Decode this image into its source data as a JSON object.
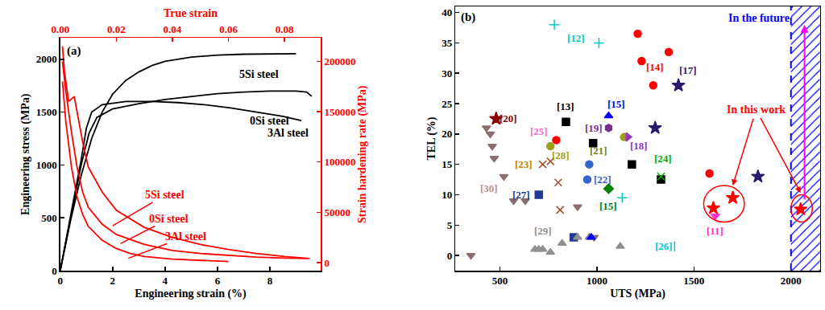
{
  "chart_data": [
    {
      "type": "line",
      "panel_label": "(a)",
      "x_label": "Engineering strain (%)",
      "y_label": "Engineering stress (MPa)",
      "x2_label": "True strain",
      "y2_label": "Strain hardening rate (MPa)",
      "xlim": [
        0,
        9.95
      ],
      "xticks": [
        0,
        2,
        4,
        6,
        8
      ],
      "ylim": [
        0,
        2200
      ],
      "yticks": [
        0,
        500,
        1000,
        1500,
        2000
      ],
      "x2lim": [
        0,
        0.093
      ],
      "x2ticks": [
        {
          "value": 0,
          "label": "0.00"
        },
        0.02,
        0.04,
        0.06,
        0.08
      ],
      "y2lim": [
        -8000,
        223000
      ],
      "y2ticks": [
        0,
        50000,
        100000,
        150000,
        200000
      ],
      "series": [
        {
          "name": "5Si steel",
          "color": "#000000",
          "x": [
            0,
            0.4,
            0.8,
            1.2,
            1.6,
            2,
            2.5,
            3,
            3.5,
            4,
            5,
            6,
            7,
            8,
            9
          ],
          "values": [
            0,
            480,
            900,
            1250,
            1500,
            1670,
            1800,
            1880,
            1940,
            1980,
            2020,
            2040,
            2048,
            2050,
            2052
          ]
        },
        {
          "name": "0Si steel",
          "color": "#000000",
          "x": [
            0,
            0.4,
            0.8,
            1.1,
            1.4,
            2,
            3,
            4,
            5,
            6,
            7,
            8,
            9,
            9.4,
            9.6
          ],
          "values": [
            0,
            500,
            1000,
            1300,
            1450,
            1530,
            1580,
            1620,
            1650,
            1675,
            1690,
            1700,
            1700,
            1690,
            1650
          ]
        },
        {
          "name": "3Al steel",
          "color": "#000000",
          "x": [
            0,
            0.4,
            0.8,
            1.0,
            1.2,
            1.6,
            2.5,
            3.5,
            4.5,
            5.5,
            6.5,
            7.5,
            8.5,
            9.2
          ],
          "values": [
            0,
            520,
            1050,
            1350,
            1500,
            1570,
            1600,
            1600,
            1590,
            1570,
            1540,
            1500,
            1460,
            1420
          ]
        },
        {
          "name": "5Si steel",
          "color": "#ff0000",
          "axis": "y2",
          "x": [
            0.0008,
            0.0015,
            0.003,
            0.005,
            0.006,
            0.008,
            0.01,
            0.015,
            0.02,
            0.03,
            0.04,
            0.05,
            0.06,
            0.07,
            0.08,
            0.089
          ],
          "values": [
            215000,
            190000,
            160000,
            165000,
            150000,
            120000,
            95000,
            70000,
            52000,
            35000,
            25000,
            18000,
            13000,
            9000,
            6000,
            4000
          ]
        },
        {
          "name": "0Si steel",
          "color": "#ff0000",
          "axis": "y2",
          "x": [
            0.0008,
            0.002,
            0.004,
            0.006,
            0.008,
            0.01,
            0.015,
            0.02,
            0.03,
            0.04,
            0.05,
            0.06,
            0.07,
            0.08,
            0.088
          ],
          "values": [
            200000,
            170000,
            130000,
            95000,
            70000,
            55000,
            38000,
            28000,
            18000,
            12000,
            9000,
            7000,
            5500,
            4500,
            4000
          ]
        },
        {
          "name": "3Al steel",
          "color": "#ff0000",
          "axis": "y2",
          "x": [
            0.0008,
            0.002,
            0.004,
            0.006,
            0.008,
            0.01,
            0.015,
            0.02,
            0.025,
            0.03,
            0.04,
            0.05,
            0.06
          ],
          "values": [
            180000,
            140000,
            95000,
            65000,
            48000,
            36000,
            22000,
            14000,
            9000,
            6000,
            3500,
            2000,
            1000
          ]
        }
      ],
      "annotations": [
        {
          "text": "5Si steel",
          "x": 7.6,
          "y": 1860,
          "color": "#000000"
        },
        {
          "text": "0Si steel",
          "x": 8.0,
          "y": 1420,
          "color": "#000000"
        },
        {
          "text": "3Al steel",
          "x": 8.7,
          "y": 1300,
          "color": "#000000"
        },
        {
          "text": "5Si steel",
          "x": 4.0,
          "y": 715,
          "color": "#ff0000",
          "arrow_x": 2.0,
          "arrow_y": 425
        },
        {
          "text": "0Si steel",
          "x": 4.15,
          "y": 490,
          "color": "#ff0000",
          "arrow_x": 2.3,
          "arrow_y": 255
        },
        {
          "text": "3Al steel",
          "x": 4.8,
          "y": 323,
          "color": "#ff0000",
          "arrow_x": 2.6,
          "arrow_y": 117
        }
      ]
    },
    {
      "type": "scatter",
      "panel_label": "(b)",
      "x_label": "UTS (MPa)",
      "y_label": "TEL (%)",
      "xlim": [
        270,
        2150
      ],
      "xticks": [
        500,
        1000,
        1500,
        2000
      ],
      "ylim": [
        -2.5,
        41
      ],
      "yticks": [
        0,
        5,
        10,
        15,
        20,
        25,
        30,
        35,
        40
      ],
      "series": [
        {
          "color": "#8b6f6f",
          "marker": "triangle-down",
          "x": [
            350,
            430,
            450,
            460,
            470,
            520,
            570,
            630,
            900,
            985
          ],
          "values": [
            0,
            21,
            20,
            18,
            16,
            13,
            9,
            9,
            8,
            3
          ]
        },
        {
          "color": "#8b0000",
          "marker": "star",
          "x": [
            480
          ],
          "values": [
            22.5
          ]
        },
        {
          "color": "#ff0000",
          "marker": "circle",
          "x": [
            790,
            1210,
            1230,
            1290,
            1370,
            1580
          ],
          "values": [
            19,
            36.5,
            32,
            28,
            33.5,
            13.5
          ]
        },
        {
          "color": "#a0a020",
          "marker": "circle",
          "x": [
            760,
            1140
          ],
          "values": [
            18,
            19.5
          ]
        },
        {
          "color": "#000000",
          "marker": "square",
          "x": [
            840,
            980,
            1180,
            1330
          ],
          "values": [
            22,
            18.5,
            15,
            12.5
          ]
        },
        {
          "color": "#a0522d",
          "marker": "x-thin-open",
          "x": [
            720,
            760,
            800,
            810
          ],
          "values": [
            15,
            15.5,
            12,
            7.5
          ]
        },
        {
          "color": "#1f3a93",
          "marker": "square",
          "x": [
            700,
            880
          ],
          "values": [
            10,
            3
          ]
        },
        {
          "color": "#3366cc",
          "marker": "circle",
          "x": [
            950,
            960
          ],
          "values": [
            12.5,
            15
          ]
        },
        {
          "color": "#909090",
          "marker": "triangle-up",
          "x": [
            680,
            700,
            720,
            760,
            820,
            900,
            960,
            1120
          ],
          "values": [
            1,
            1,
            1,
            0.5,
            2,
            3,
            3,
            1.5
          ]
        },
        {
          "color": "#00cccc",
          "marker": "cross-thin-open",
          "x": [
            780,
            1010,
            1130
          ],
          "values": [
            38,
            35,
            9.5
          ]
        },
        {
          "color": "#00cccc",
          "marker": "line-ns-open",
          "x": [
            1400
          ],
          "values": [
            1.5
          ]
        },
        {
          "color": "#2b1a6b",
          "marker": "star",
          "x": [
            1420,
            1300,
            1830
          ],
          "values": [
            28,
            21,
            13
          ]
        },
        {
          "color": "#0000ff",
          "marker": "triangle-up",
          "x": [
            1060,
            970
          ],
          "values": [
            23,
            3
          ]
        },
        {
          "color": "#008000",
          "marker": "diamond",
          "x": [
            1060
          ],
          "values": [
            11
          ]
        },
        {
          "color": "#7b2d8e",
          "marker": "hexagon",
          "x": [
            1060
          ],
          "values": [
            21
          ]
        },
        {
          "color": "#9932cc",
          "marker": "triangle-right",
          "x": [
            1160
          ],
          "values": [
            19.5
          ]
        },
        {
          "color": "#00aa00",
          "marker": "x-thin-open",
          "x": [
            1330
          ],
          "values": [
            13
          ]
        },
        {
          "color": "#ff33cc",
          "marker": "triangle-down",
          "x": [
            1610
          ],
          "values": [
            6.5
          ]
        },
        {
          "color": "#ff0000",
          "marker": "star",
          "x": [
            1600,
            1700,
            2050
          ],
          "values": [
            7.8,
            9.5,
            7.6
          ]
        }
      ],
      "annotations": [
        {
          "text": "[12]",
          "x": 890,
          "y": 35.8,
          "color": "#00cccc"
        },
        {
          "text": "[14]",
          "x": 1300,
          "y": 31,
          "color": "#ff0000"
        },
        {
          "text": "[17]",
          "x": 1470,
          "y": 30.5,
          "color": "#2b1a6b"
        },
        {
          "text": "[13]",
          "x": 840,
          "y": 24.5,
          "color": "#000000"
        },
        {
          "text": "[15]",
          "x": 1100,
          "y": 25,
          "color": "#0000ff"
        },
        {
          "text": "[20]",
          "x": 545,
          "y": 22.5,
          "color": "#8b0000"
        },
        {
          "text": "[25]",
          "x": 700,
          "y": 20.5,
          "color": "#ff66cc"
        },
        {
          "text": "[19]",
          "x": 985,
          "y": 21,
          "color": "#7b2d8e"
        },
        {
          "text": "[21]",
          "x": 1010,
          "y": 17.3,
          "color": "#808000"
        },
        {
          "text": "[18]",
          "x": 1215,
          "y": 18,
          "color": "#9932cc"
        },
        {
          "text": "[23]",
          "x": 620,
          "y": 15,
          "color": "#b8860b"
        },
        {
          "text": "[28]",
          "x": 815,
          "y": 16.5,
          "color": "#a0a020"
        },
        {
          "text": "[24]",
          "x": 1340,
          "y": 16,
          "color": "#00aa00"
        },
        {
          "text": "[22]",
          "x": 1030,
          "y": 12.5,
          "color": "#3366cc"
        },
        {
          "text": "[27]",
          "x": 610,
          "y": 10,
          "color": "#1f3a93"
        },
        {
          "text": "[15]",
          "x": 1060,
          "y": 8.2,
          "color": "#008000"
        },
        {
          "text": "[30]",
          "x": 445,
          "y": 11,
          "color": "#bc8f8f"
        },
        {
          "text": "[29]",
          "x": 720,
          "y": 4,
          "color": "#909090"
        },
        {
          "text": "[26]",
          "x": 1345,
          "y": 1.5,
          "color": "#00cccc"
        },
        {
          "text": "[11]",
          "x": 1610,
          "y": 4,
          "color": "#ff33cc"
        }
      ],
      "region": {
        "text": "In the future",
        "from": 2000,
        "color": "#0000ff"
      },
      "highlights": [
        {
          "x0": 1550,
          "x1": 1760,
          "y0": 5.5,
          "y1": 11.5,
          "color": "#ff0000"
        },
        {
          "x0": 2000,
          "x1": 2110,
          "y0": 5.5,
          "y1": 10,
          "color": "#ff0000"
        }
      ],
      "work_label": {
        "text": "In this work",
        "x": 1820,
        "y": 24,
        "color": "#ff0000",
        "arrows_to": [
          [
            1700,
            11.5
          ],
          [
            2050,
            10.3
          ]
        ]
      },
      "arrow": {
        "x": 2070,
        "y0": 9,
        "y1": 38,
        "color": "#ff00ff"
      }
    }
  ]
}
